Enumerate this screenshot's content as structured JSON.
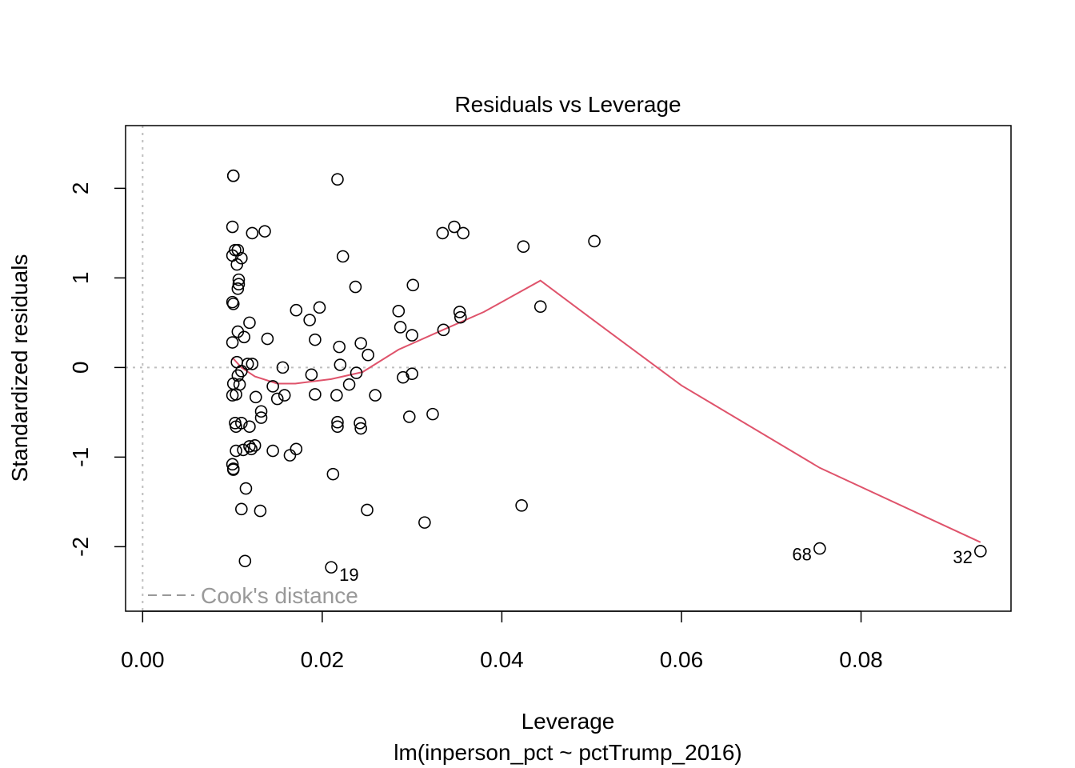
{
  "chart_data": {
    "type": "scatter",
    "title": "Residuals vs Leverage",
    "xlabel": "Leverage",
    "subtitle": "lm(inperson_pct ~ pctTrump_2016)",
    "ylabel": "Standardized residuals",
    "xlim": [
      -0.0019,
      0.0967
    ],
    "ylim": [
      -2.72,
      2.7
    ],
    "x_ticks": [
      0.0,
      0.02,
      0.04,
      0.06,
      0.08
    ],
    "x_tick_labels": [
      "0.00",
      "0.02",
      "0.04",
      "0.06",
      "0.08"
    ],
    "y_ticks": [
      -2,
      -1,
      0,
      1,
      2
    ],
    "y_tick_labels": [
      "-2",
      "-1",
      "0",
      "1",
      "2"
    ],
    "grid": false,
    "points": [
      {
        "x": 0.0101,
        "y": 2.14
      },
      {
        "x": 0.0101,
        "y": 2.14
      },
      {
        "x": 0.0217,
        "y": 2.1
      },
      {
        "x": 0.01,
        "y": 1.57
      },
      {
        "x": 0.0122,
        "y": 1.5
      },
      {
        "x": 0.0136,
        "y": 1.52
      },
      {
        "x": 0.0103,
        "y": 1.31
      },
      {
        "x": 0.0106,
        "y": 1.31
      },
      {
        "x": 0.01,
        "y": 1.25
      },
      {
        "x": 0.011,
        "y": 1.22
      },
      {
        "x": 0.0105,
        "y": 1.15
      },
      {
        "x": 0.0223,
        "y": 1.24
      },
      {
        "x": 0.0107,
        "y": 0.98
      },
      {
        "x": 0.0107,
        "y": 0.93
      },
      {
        "x": 0.0106,
        "y": 0.88
      },
      {
        "x": 0.0237,
        "y": 0.9
      },
      {
        "x": 0.0301,
        "y": 0.92
      },
      {
        "x": 0.0334,
        "y": 1.5
      },
      {
        "x": 0.0347,
        "y": 1.57
      },
      {
        "x": 0.0357,
        "y": 1.5
      },
      {
        "x": 0.0424,
        "y": 1.35
      },
      {
        "x": 0.0503,
        "y": 1.41
      },
      {
        "x": 0.01,
        "y": 0.73
      },
      {
        "x": 0.0101,
        "y": 0.71
      },
      {
        "x": 0.0171,
        "y": 0.64
      },
      {
        "x": 0.0197,
        "y": 0.67
      },
      {
        "x": 0.0186,
        "y": 0.53
      },
      {
        "x": 0.0119,
        "y": 0.5
      },
      {
        "x": 0.0106,
        "y": 0.4
      },
      {
        "x": 0.0113,
        "y": 0.34
      },
      {
        "x": 0.0139,
        "y": 0.32
      },
      {
        "x": 0.0192,
        "y": 0.31
      },
      {
        "x": 0.01,
        "y": 0.28
      },
      {
        "x": 0.0219,
        "y": 0.23
      },
      {
        "x": 0.0243,
        "y": 0.27
      },
      {
        "x": 0.0251,
        "y": 0.14
      },
      {
        "x": 0.0285,
        "y": 0.63
      },
      {
        "x": 0.0287,
        "y": 0.45
      },
      {
        "x": 0.03,
        "y": 0.36
      },
      {
        "x": 0.0335,
        "y": 0.42
      },
      {
        "x": 0.0353,
        "y": 0.62
      },
      {
        "x": 0.0354,
        "y": 0.56
      },
      {
        "x": 0.0443,
        "y": 0.68
      },
      {
        "x": 0.0105,
        "y": 0.06
      },
      {
        "x": 0.0117,
        "y": 0.04
      },
      {
        "x": 0.0122,
        "y": 0.04
      },
      {
        "x": 0.0156,
        "y": 0.0
      },
      {
        "x": 0.022,
        "y": 0.03
      },
      {
        "x": 0.0238,
        "y": -0.06
      },
      {
        "x": 0.011,
        "y": -0.04
      },
      {
        "x": 0.0106,
        "y": -0.09
      },
      {
        "x": 0.0101,
        "y": -0.18
      },
      {
        "x": 0.0108,
        "y": -0.19
      },
      {
        "x": 0.0145,
        "y": -0.21
      },
      {
        "x": 0.0188,
        "y": -0.08
      },
      {
        "x": 0.023,
        "y": -0.19
      },
      {
        "x": 0.029,
        "y": -0.11
      },
      {
        "x": 0.03,
        "y": -0.07
      },
      {
        "x": 0.01,
        "y": -0.31
      },
      {
        "x": 0.0104,
        "y": -0.3
      },
      {
        "x": 0.0126,
        "y": -0.33
      },
      {
        "x": 0.0158,
        "y": -0.31
      },
      {
        "x": 0.015,
        "y": -0.35
      },
      {
        "x": 0.0192,
        "y": -0.3
      },
      {
        "x": 0.0216,
        "y": -0.31
      },
      {
        "x": 0.0259,
        "y": -0.31
      },
      {
        "x": 0.0132,
        "y": -0.49
      },
      {
        "x": 0.0132,
        "y": -0.56
      },
      {
        "x": 0.0297,
        "y": -0.55
      },
      {
        "x": 0.0323,
        "y": -0.52
      },
      {
        "x": 0.0103,
        "y": -0.62
      },
      {
        "x": 0.0104,
        "y": -0.66
      },
      {
        "x": 0.011,
        "y": -0.62
      },
      {
        "x": 0.0119,
        "y": -0.66
      },
      {
        "x": 0.0217,
        "y": -0.61
      },
      {
        "x": 0.0217,
        "y": -0.66
      },
      {
        "x": 0.0242,
        "y": -0.62
      },
      {
        "x": 0.0243,
        "y": -0.68
      },
      {
        "x": 0.0104,
        "y": -0.93
      },
      {
        "x": 0.0112,
        "y": -0.92
      },
      {
        "x": 0.0119,
        "y": -0.88
      },
      {
        "x": 0.0121,
        "y": -0.91
      },
      {
        "x": 0.0125,
        "y": -0.87
      },
      {
        "x": 0.0145,
        "y": -0.93
      },
      {
        "x": 0.0164,
        "y": -0.98
      },
      {
        "x": 0.0171,
        "y": -0.91
      },
      {
        "x": 0.01,
        "y": -1.08
      },
      {
        "x": 0.0101,
        "y": -1.13
      },
      {
        "x": 0.0101,
        "y": -1.14
      },
      {
        "x": 0.0212,
        "y": -1.19
      },
      {
        "x": 0.0115,
        "y": -1.35
      },
      {
        "x": 0.011,
        "y": -1.58
      },
      {
        "x": 0.0131,
        "y": -1.6
      },
      {
        "x": 0.025,
        "y": -1.59
      },
      {
        "x": 0.0314,
        "y": -1.73
      },
      {
        "x": 0.0422,
        "y": -1.54
      },
      {
        "x": 0.0114,
        "y": -2.16
      },
      {
        "x": 0.021,
        "y": -2.23
      },
      {
        "x": 0.0754,
        "y": -2.02
      },
      {
        "x": 0.0933,
        "y": -2.05
      }
    ],
    "point_labels": [
      {
        "x": 0.021,
        "y": -2.23,
        "label": "19",
        "side": "right"
      },
      {
        "x": 0.0754,
        "y": -2.02,
        "label": "68",
        "side": "left"
      },
      {
        "x": 0.0933,
        "y": -2.05,
        "label": "32",
        "side": "left"
      }
    ],
    "smooth_line": {
      "color": "#DF536B",
      "x": [
        0.01,
        0.011,
        0.0125,
        0.015,
        0.017,
        0.021,
        0.0245,
        0.0285,
        0.033,
        0.038,
        0.0443,
        0.0503,
        0.06,
        0.0754,
        0.0933
      ],
      "y": [
        0.11,
        0.0,
        -0.1,
        -0.18,
        -0.18,
        -0.13,
        -0.05,
        0.2,
        0.4,
        0.62,
        0.97,
        0.52,
        -0.2,
        -1.12,
        -1.95
      ]
    },
    "reference_lines": {
      "h": 0,
      "v": 0,
      "color": "#BEBEBE"
    },
    "legend": {
      "position": "bottom-left",
      "label": "Cook's distance",
      "color": "#999999"
    }
  }
}
